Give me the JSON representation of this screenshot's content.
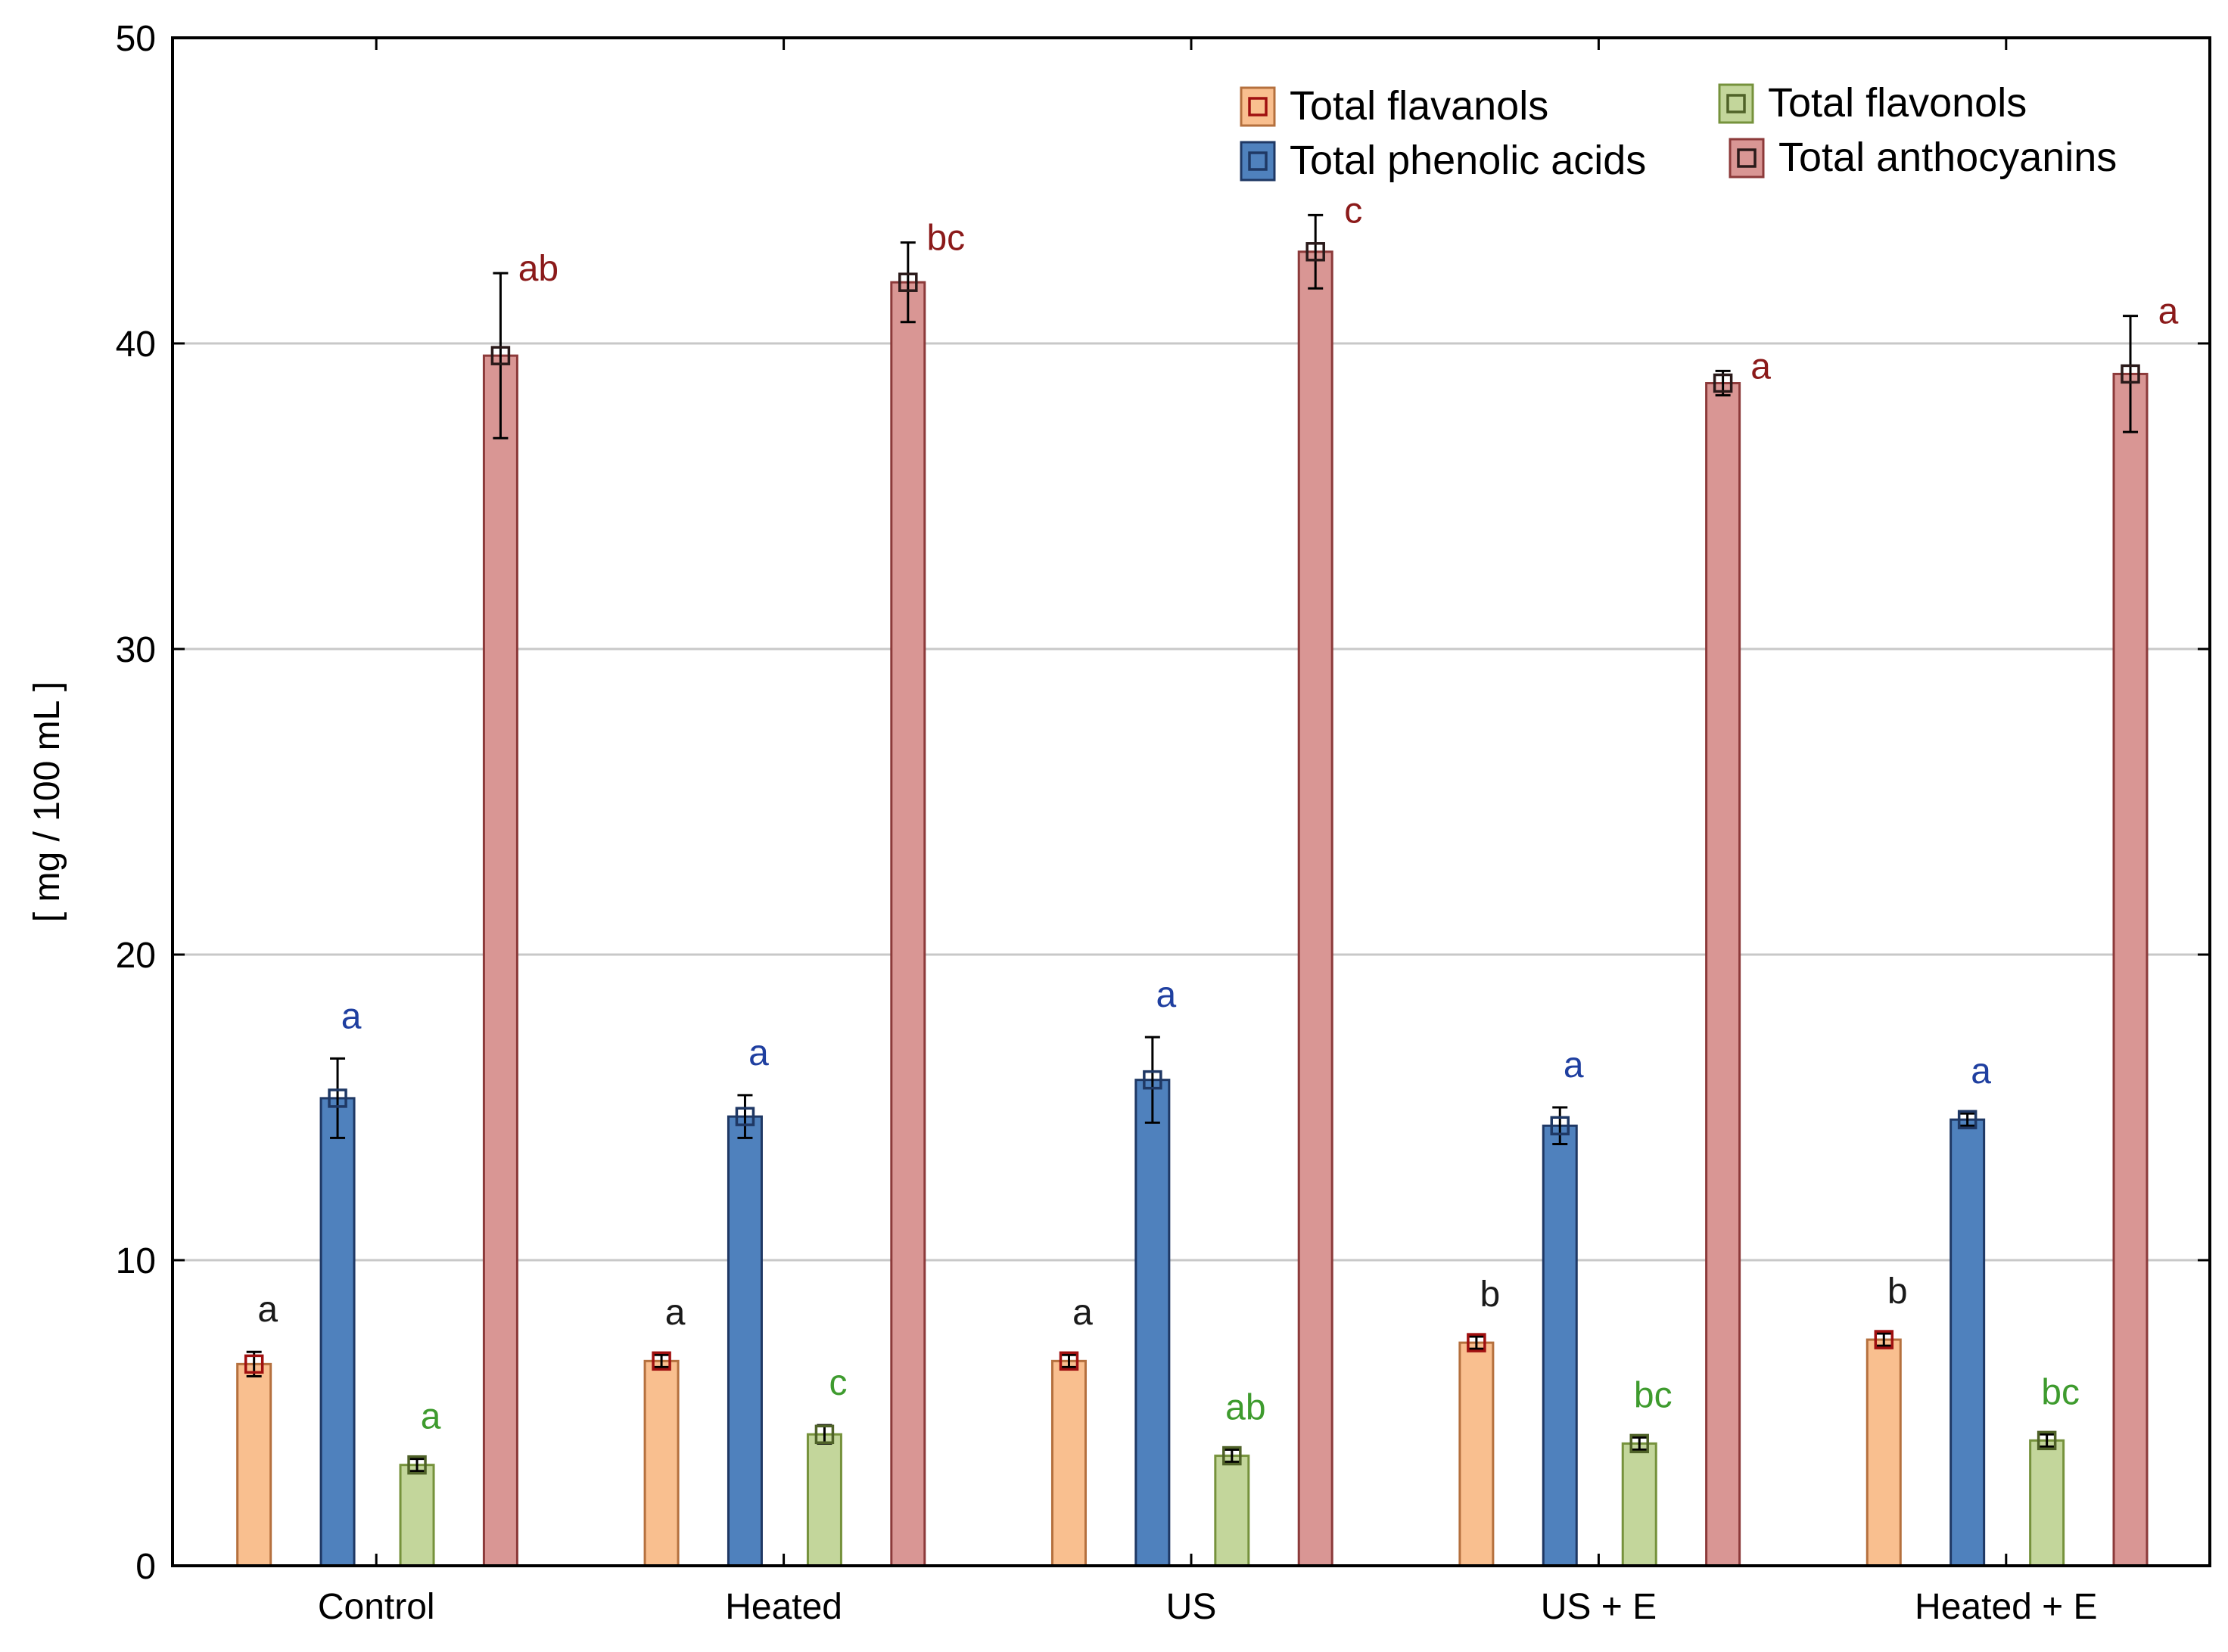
{
  "chart_data": {
    "type": "bar",
    "title": "",
    "xlabel": "",
    "ylabel": "[ mg / 100 mL ]",
    "ylim": [
      0,
      50
    ],
    "yticks": [
      "0",
      "10",
      "20",
      "30",
      "40",
      "50"
    ],
    "grid": "horizontal",
    "legend_position": "top-right",
    "categories": [
      "Control",
      "Heated",
      "US",
      "US + E",
      "Heated + E"
    ],
    "series": [
      {
        "name": "Total flavanols",
        "fill": "#f9bf8f",
        "stroke": "#b5703e",
        "marker": "#a01010",
        "label_color": "#1a1a1a",
        "values": [
          6.6,
          6.7,
          6.7,
          7.3,
          7.4
        ],
        "errors": [
          0.4,
          0.2,
          0.2,
          0.2,
          0.2
        ],
        "letters": [
          "a",
          "a",
          "a",
          "b",
          "b"
        ]
      },
      {
        "name": "Total phenolic acids",
        "fill": "#4f81bd",
        "stroke": "#1f3864",
        "marker": "#1f3864",
        "label_color": "#1f3fa0",
        "values": [
          15.3,
          14.7,
          15.9,
          14.4,
          14.6
        ],
        "errors": [
          1.3,
          0.7,
          1.4,
          0.6,
          0.2
        ],
        "letters": [
          "a",
          "a",
          "a",
          "a",
          "a"
        ]
      },
      {
        "name": "Total flavonols",
        "fill": "#c3d69b",
        "stroke": "#76923c",
        "marker": "#4f6228",
        "label_color": "#3e9b2e",
        "values": [
          3.3,
          4.3,
          3.6,
          4.0,
          4.1
        ],
        "errors": [
          0.2,
          0.3,
          0.2,
          0.2,
          0.2
        ],
        "letters": [
          "a",
          "c",
          "ab",
          "bc",
          "bc"
        ]
      },
      {
        "name": "Total anthocyanins",
        "fill": "#d99694",
        "stroke": "#8c3a3a",
        "marker": "#2a1a1a",
        "label_color": "#8b1a1a",
        "values": [
          39.6,
          42.0,
          43.0,
          38.7,
          39.0
        ],
        "errors": [
          2.7,
          1.3,
          1.2,
          0.4,
          1.9
        ],
        "letters": [
          "ab",
          "bc",
          "c",
          "a",
          "a"
        ]
      }
    ]
  }
}
